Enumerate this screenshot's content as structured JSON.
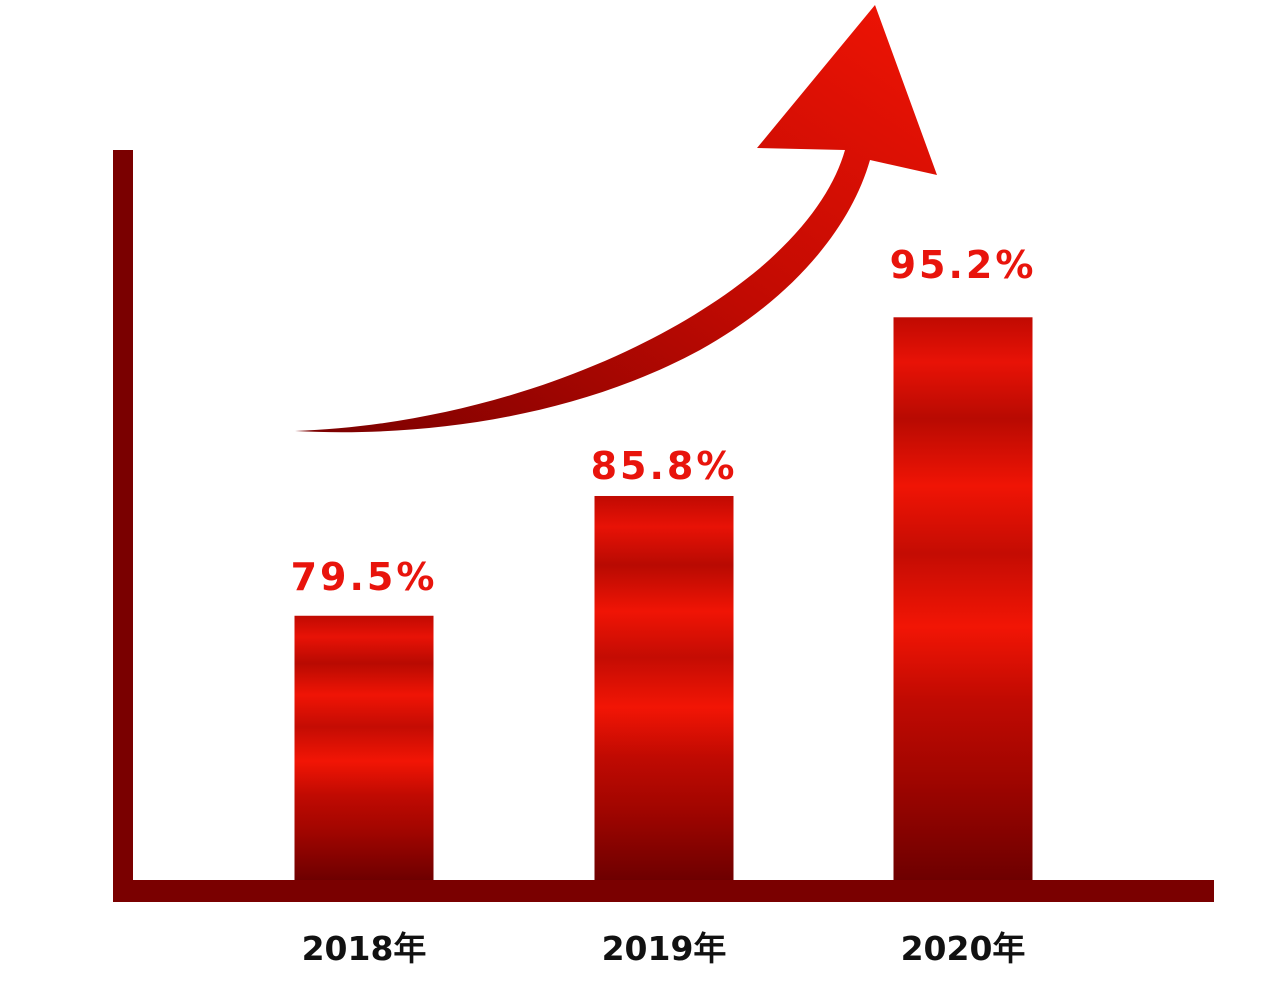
{
  "chart_data": {
    "type": "bar",
    "categories": [
      "2018年",
      "2019年",
      "2020年"
    ],
    "values": [
      79.5,
      85.8,
      95.2
    ],
    "value_labels": [
      "79.5%",
      "85.8%",
      "95.2%"
    ],
    "title": "",
    "xlabel": "",
    "ylabel": "",
    "ylim": [
      65.6,
      104
    ],
    "grid": false,
    "legend": "none",
    "decoration": "rising-arrow",
    "colors": {
      "bar_dark": "#7a0000",
      "bar_bright": "#f01405",
      "axis": "#7a0000",
      "label": "#e8140c"
    }
  }
}
